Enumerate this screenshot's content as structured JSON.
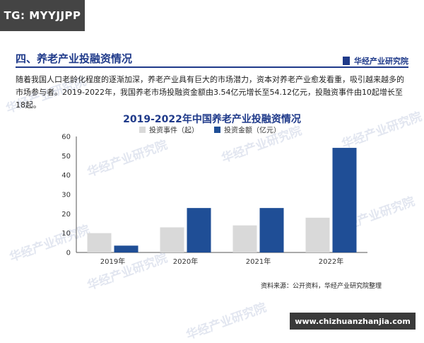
{
  "tag": "TG: MYYJJPP",
  "section_title": "四、养老产业投融资情况",
  "brand": "华经产业研究院",
  "paragraph": "随着我国人口老龄化程度的逐渐加深，养老产业具有巨大的市场潜力，资本对养老产业愈发看重，吸引越来越多的市场参与者。2019-2022年，我国养老市场投融资金额由3.54亿元增长至54.12亿元，投融资事件由10起增长至18起。",
  "watermark": "华经产业研究院",
  "source": "资料来源：公开资料，华经产业研究院整理",
  "banner": "www.chizhuanzhanjia.com",
  "colors": {
    "events": "#d9d9d9",
    "amount": "#1f4e96",
    "title": "#1f3a8a"
  },
  "chart_data": {
    "type": "bar",
    "title": "2019-2022年中国养老产业投融资情况",
    "categories": [
      "2019年",
      "2020年",
      "2021年",
      "2022年"
    ],
    "series": [
      {
        "name": "投资事件（起）",
        "values": [
          10,
          13,
          14,
          18
        ]
      },
      {
        "name": "投资金额（亿元）",
        "values": [
          3.54,
          23,
          23,
          54.12
        ]
      }
    ],
    "ylim": [
      0,
      60
    ],
    "yticks": [
      0,
      10,
      20,
      30,
      40,
      50,
      60
    ],
    "legend": "top"
  }
}
